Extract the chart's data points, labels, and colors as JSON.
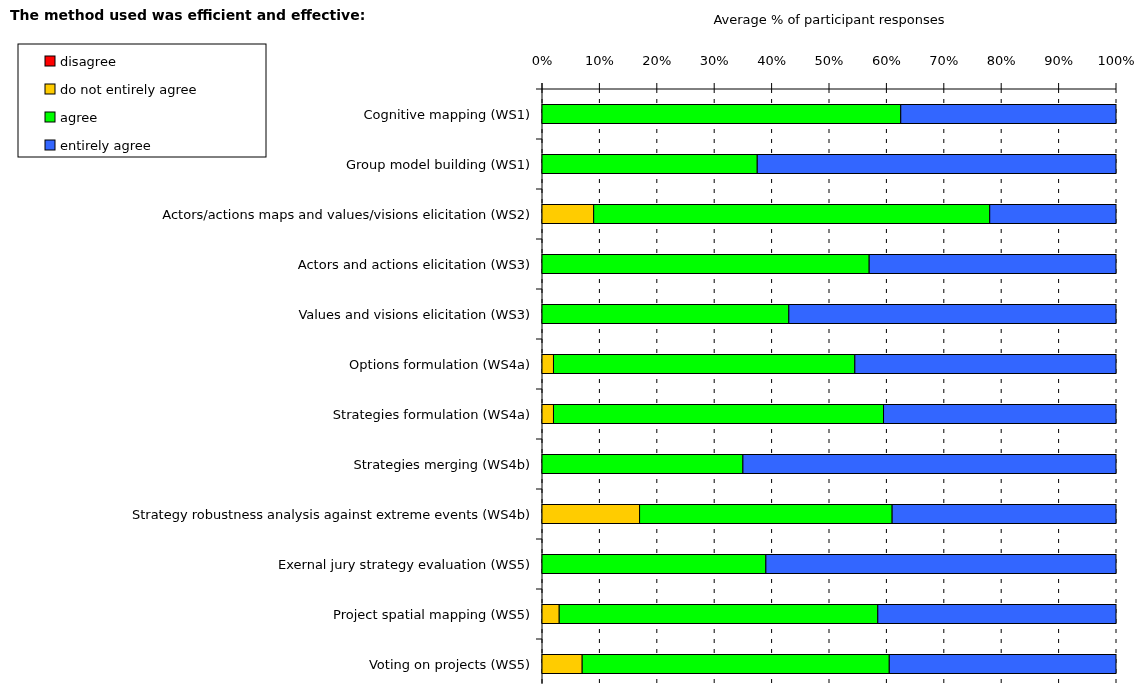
{
  "chart_data": {
    "type": "bar",
    "orientation": "horizontal",
    "stacked": true,
    "title": "The method used was efficient and effective:",
    "xlabel": "Average % of participant responses",
    "categories": [
      "Cognitive mapping (WS1)",
      "Group model building (WS1)",
      "Actors/actions maps and values/visions elicitation (WS2)",
      "Actors and actions elicitation (WS3)",
      "Values and visions elicitation (WS3)",
      "Options formulation (WS4a)",
      "Strategies formulation (WS4a)",
      "Strategies merging (WS4b)",
      "Strategy robustness analysis against extreme events (WS4b)",
      "Exernal jury strategy evaluation (WS5)",
      "Project spatial mapping (WS5)",
      "Voting on projects (WS5)"
    ],
    "series": [
      {
        "name": "disagree",
        "color": "#ff0000",
        "values": [
          0,
          0,
          0,
          0,
          0,
          0,
          0,
          0,
          0,
          0,
          0,
          0
        ]
      },
      {
        "name": "do not entirely agree",
        "color": "#ffcc00",
        "values": [
          0,
          0,
          9,
          0,
          0,
          2,
          2,
          0,
          17,
          0,
          3,
          7
        ]
      },
      {
        "name": "agree",
        "color": "#00ff00",
        "values": [
          62.5,
          37.5,
          69,
          57,
          43,
          52.5,
          57.5,
          35,
          44,
          39,
          55.5,
          53.5
        ]
      },
      {
        "name": "entirely agree",
        "color": "#3366ff",
        "values": [
          37.5,
          62.5,
          22,
          43,
          57,
          45.5,
          40.5,
          65,
          39,
          61,
          41.5,
          39.5
        ]
      }
    ],
    "xlim": [
      0,
      100
    ],
    "xticks": [
      {
        "value": 0,
        "label": "0%"
      },
      {
        "value": 10,
        "label": "10%"
      },
      {
        "value": 20,
        "label": "20%"
      },
      {
        "value": 30,
        "label": "30%"
      },
      {
        "value": 40,
        "label": "40%"
      },
      {
        "value": 50,
        "label": "50%"
      },
      {
        "value": 60,
        "label": "60%"
      },
      {
        "value": 70,
        "label": "70%"
      },
      {
        "value": 80,
        "label": "80%"
      },
      {
        "value": 90,
        "label": "90%"
      },
      {
        "value": 100,
        "label": "100%"
      }
    ],
    "grid": "x",
    "legend": "top left"
  }
}
